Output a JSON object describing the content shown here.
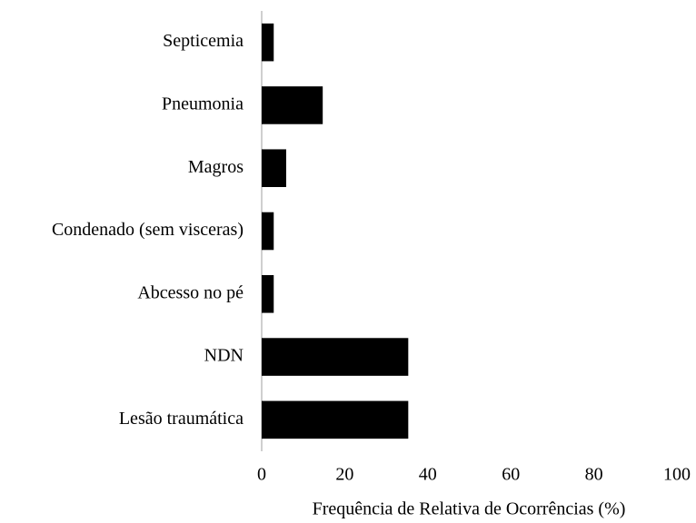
{
  "chart_data": {
    "type": "barh",
    "xlabel": "Frequência de Relativa de Ocorrências (%)",
    "categories": [
      "Septicemia",
      "Pneumonia",
      "Magros",
      "Condenado (sem visceras)",
      "Abcesso no pé",
      "NDN",
      "Lesão traumática"
    ],
    "values": [
      2.9,
      14.7,
      5.9,
      2.9,
      2.9,
      35.3,
      35.3
    ],
    "color": "#000000",
    "xlim": [
      0,
      100
    ],
    "xticks": [
      0,
      20,
      40,
      60,
      80,
      100
    ],
    "grid": false
  }
}
